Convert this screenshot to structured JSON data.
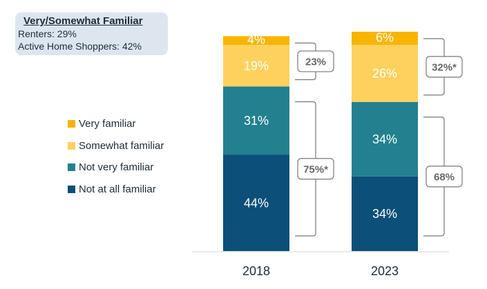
{
  "callout": {
    "title": "Very/Somewhat Familiar",
    "lines": [
      "Renters: 29%",
      "Active Home Shoppers: 42%"
    ]
  },
  "colors": {
    "very": "#f7b500",
    "somewhat": "#fdd15d",
    "not_very": "#23808f",
    "not_at_all": "#0c4f78",
    "text_dark": "#1e2b39",
    "bracket": "#777777"
  },
  "chart_data": {
    "type": "bar",
    "stacked": true,
    "categories": [
      "2018",
      "2023"
    ],
    "series": [
      {
        "name": "Not at all familiar",
        "values": [
          44,
          34
        ],
        "labels": [
          "44%",
          "34%"
        ],
        "color": "#0c4f78",
        "label_color": "#ffffff"
      },
      {
        "name": "Not very familiar",
        "values": [
          31,
          34
        ],
        "labels": [
          "31%",
          "34%"
        ],
        "color": "#23808f",
        "label_color": "#ffffff"
      },
      {
        "name": "Somewhat familiar",
        "values": [
          19,
          26
        ],
        "labels": [
          "19%",
          "26%"
        ],
        "color": "#fdd15d",
        "label_color": "#ffffff"
      },
      {
        "name": "Very familiar",
        "values": [
          4,
          6
        ],
        "labels": [
          "4%",
          "6%"
        ],
        "color": "#f7b500",
        "label_color": "#ffffff"
      }
    ],
    "legend_order": [
      "Very familiar",
      "Somewhat familiar",
      "Not very familiar",
      "Not at all familiar"
    ],
    "legend_position": "left",
    "brackets": [
      {
        "category": "2018",
        "group": "top",
        "label": "23%"
      },
      {
        "category": "2018",
        "group": "bottom",
        "label": "75%*"
      },
      {
        "category": "2023",
        "group": "top",
        "label": "32%*"
      },
      {
        "category": "2023",
        "group": "bottom",
        "label": "68%"
      }
    ],
    "ylim": [
      0,
      100
    ],
    "grid": false
  }
}
